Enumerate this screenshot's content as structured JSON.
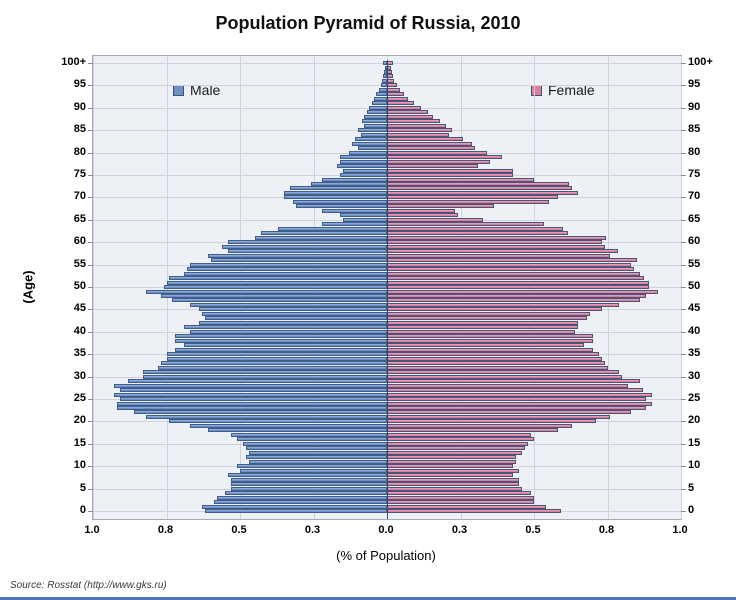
{
  "title": "Population Pyramid of Russia, 2010",
  "source": "Source: Rosstat  (http://www.gks.ru)",
  "legend": {
    "male": "Male",
    "female": "Female"
  },
  "colors": {
    "male_fill": "#6d90c4",
    "male_border": "#3f5e8e",
    "female_fill": "#de7e9f",
    "female_border": "#4a5578",
    "plot_bg": "#edf0f5",
    "grid": "#cdd2dd",
    "plot_border": "#a4aab4",
    "bottom_strip": "#4a74b8"
  },
  "chart_data": {
    "type": "bar",
    "subtype": "population-pyramid",
    "title": "Population Pyramid of Russia, 2010",
    "xlabel": "(% of Population)",
    "ylabel": "(Age)",
    "grid": true,
    "xlim_each_side": [
      0,
      1.0
    ],
    "x_tick_values": [
      1.0,
      0.75,
      0.5,
      0.25,
      0.0,
      0.25,
      0.5,
      0.75,
      1.0
    ],
    "x_tick_labels": [
      "1.0",
      "0.8",
      "0.5",
      "0.3",
      "0.0",
      "0.3",
      "0.5",
      "0.8",
      "1.0"
    ],
    "y_tick_labels": [
      "0",
      "5",
      "10",
      "15",
      "20",
      "25",
      "30",
      "35",
      "40",
      "45",
      "50",
      "55",
      "60",
      "65",
      "70",
      "75",
      "80",
      "85",
      "90",
      "95",
      "100+"
    ],
    "ages": "0-100 single years, 100 = 100+",
    "series": [
      {
        "name": "Male",
        "side": "left",
        "values": [
          0.62,
          0.63,
          0.59,
          0.58,
          0.55,
          0.53,
          0.53,
          0.53,
          0.54,
          0.5,
          0.51,
          0.47,
          0.48,
          0.47,
          0.48,
          0.49,
          0.51,
          0.53,
          0.61,
          0.67,
          0.74,
          0.82,
          0.86,
          0.92,
          0.92,
          0.91,
          0.93,
          0.91,
          0.93,
          0.88,
          0.83,
          0.83,
          0.78,
          0.77,
          0.75,
          0.75,
          0.72,
          0.69,
          0.72,
          0.72,
          0.67,
          0.69,
          0.64,
          0.62,
          0.63,
          0.64,
          0.67,
          0.73,
          0.77,
          0.82,
          0.76,
          0.75,
          0.74,
          0.69,
          0.68,
          0.67,
          0.6,
          0.61,
          0.54,
          0.56,
          0.54,
          0.45,
          0.43,
          0.37,
          0.22,
          0.15,
          0.16,
          0.22,
          0.31,
          0.32,
          0.35,
          0.35,
          0.33,
          0.26,
          0.22,
          0.16,
          0.15,
          0.17,
          0.16,
          0.16,
          0.13,
          0.1,
          0.12,
          0.11,
          0.09,
          0.1,
          0.08,
          0.085,
          0.077,
          0.068,
          0.06,
          0.051,
          0.043,
          0.036,
          0.028,
          0.022,
          0.017,
          0.014,
          0.011,
          0.008,
          0.015
        ]
      },
      {
        "name": "Female",
        "side": "right",
        "values": [
          0.59,
          0.54,
          0.5,
          0.5,
          0.49,
          0.46,
          0.45,
          0.45,
          0.43,
          0.45,
          0.43,
          0.44,
          0.44,
          0.46,
          0.47,
          0.48,
          0.5,
          0.49,
          0.58,
          0.63,
          0.71,
          0.76,
          0.83,
          0.88,
          0.9,
          0.88,
          0.9,
          0.87,
          0.82,
          0.86,
          0.8,
          0.79,
          0.75,
          0.74,
          0.73,
          0.72,
          0.7,
          0.67,
          0.7,
          0.7,
          0.64,
          0.65,
          0.65,
          0.68,
          0.69,
          0.73,
          0.79,
          0.86,
          0.88,
          0.92,
          0.89,
          0.89,
          0.875,
          0.86,
          0.84,
          0.83,
          0.85,
          0.76,
          0.785,
          0.74,
          0.73,
          0.745,
          0.615,
          0.6,
          0.535,
          0.325,
          0.24,
          0.23,
          0.365,
          0.55,
          0.58,
          0.65,
          0.63,
          0.62,
          0.5,
          0.43,
          0.43,
          0.31,
          0.35,
          0.39,
          0.34,
          0.3,
          0.29,
          0.26,
          0.21,
          0.22,
          0.2,
          0.18,
          0.155,
          0.14,
          0.115,
          0.09,
          0.07,
          0.057,
          0.044,
          0.034,
          0.025,
          0.02,
          0.017,
          0.014,
          0.021
        ]
      }
    ],
    "legend_position": "inside-top"
  }
}
